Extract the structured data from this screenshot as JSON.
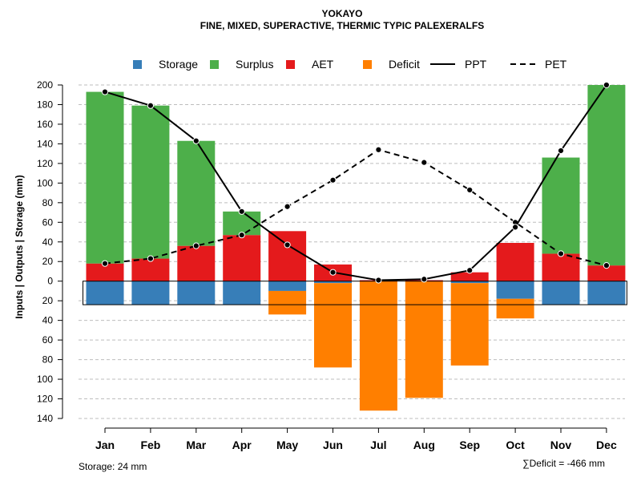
{
  "chart_data": {
    "type": "bar",
    "title": "YOKAYO",
    "subtitle": "FINE, MIXED, SUPERACTIVE, THERMIC TYPIC PALEXERALFS",
    "ylabel": "Inputs | Outputs | Storage    (mm)",
    "ylim": [
      -140,
      200
    ],
    "yticks": [
      200,
      180,
      160,
      140,
      120,
      100,
      80,
      60,
      40,
      20,
      0,
      -20,
      -40,
      -60,
      -80,
      -100,
      -120,
      -140
    ],
    "ytick_labels": [
      "200",
      "180",
      "160",
      "140",
      "120",
      "100",
      "80",
      "60",
      "40",
      "20",
      "0",
      "20",
      "40",
      "60",
      "80",
      "100",
      "120",
      "140"
    ],
    "grid": true,
    "categories": [
      "Jan",
      "Feb",
      "Mar",
      "Apr",
      "May",
      "Jun",
      "Jul",
      "Aug",
      "Sep",
      "Oct",
      "Nov",
      "Dec"
    ],
    "legend": [
      {
        "name": "Storage",
        "kind": "square",
        "color": "#377eb8"
      },
      {
        "name": "Surplus",
        "kind": "square",
        "color": "#4daf4a"
      },
      {
        "name": "AET",
        "kind": "square",
        "color": "#e41a1c"
      },
      {
        "name": "Deficit",
        "kind": "square",
        "color": "#ff7f00"
      },
      {
        "name": "PPT",
        "kind": "solid"
      },
      {
        "name": "PET",
        "kind": "dashed"
      }
    ],
    "series": [
      {
        "name": "AET",
        "color": "#e41a1c",
        "values": [
          18,
          23,
          36,
          47,
          51,
          17,
          1,
          1,
          9,
          39,
          28,
          16
        ]
      },
      {
        "name": "Surplus",
        "color": "#4daf4a",
        "values": [
          175,
          156,
          107,
          24,
          0,
          0,
          0,
          0,
          0,
          0,
          98,
          184
        ]
      },
      {
        "name": "Storage",
        "color": "#377eb8",
        "values": [
          -24,
          -24,
          -24,
          -24,
          -10,
          -2,
          0,
          0,
          -2,
          -18,
          -24,
          -24
        ]
      },
      {
        "name": "Deficit",
        "color": "#ff7f00",
        "values": [
          0,
          0,
          0,
          0,
          -24,
          -86,
          -132,
          -119,
          -84,
          -20,
          0,
          0
        ]
      },
      {
        "name": "PPT",
        "values": [
          193,
          179,
          143,
          71,
          37,
          9,
          1,
          2,
          11,
          55,
          133,
          200
        ]
      },
      {
        "name": "PET",
        "values": [
          18,
          23,
          36,
          47,
          76,
          103,
          134,
          121,
          93,
          60,
          28,
          16
        ]
      }
    ],
    "storage_capacity": 24,
    "storage_note": "Storage: 24 mm",
    "deficit_note": "∑Deficit = -466 mm"
  }
}
